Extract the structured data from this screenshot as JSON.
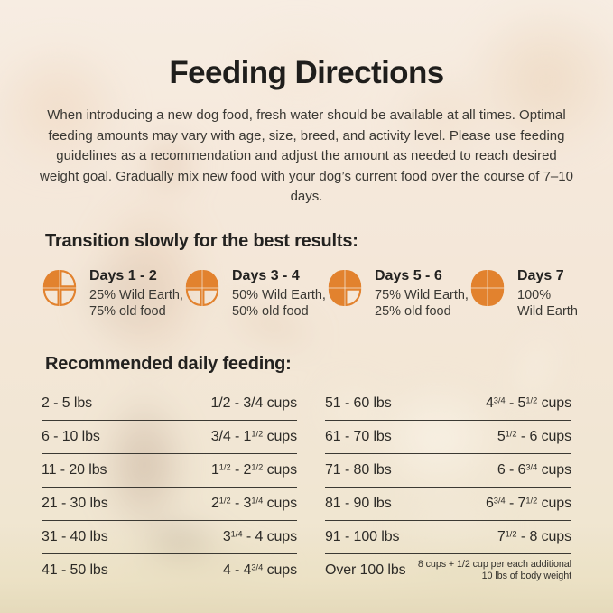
{
  "colors": {
    "accent_orange": "#E2822E",
    "text_dark": "#232220",
    "rule": "#3b3933",
    "background_cream": "#f4e6d7"
  },
  "header": {
    "title": "Feeding Directions",
    "intro": "When introducing a new dog food, fresh water should be available at all times. Optimal feeding amounts may vary with age, size, breed, and activity level. Please use feeding guidelines as a recommendation and adjust the amount as needed to reach desired weight goal. Gradually mix new food with your dog’s current food over the course of 7–10 days."
  },
  "transition": {
    "heading": "Transition slowly for the best results:",
    "items": [
      {
        "day_label": "Days 1 - 2",
        "line1": "25% Wild Earth,",
        "line2": "75% old food",
        "wild_earth_pct": 25,
        "quadrants_filled": [
          1,
          0,
          0,
          0
        ],
        "icon": "pie-quarters-icon"
      },
      {
        "day_label": "Days 3 - 4",
        "line1": "50% Wild Earth,",
        "line2": "50% old food",
        "wild_earth_pct": 50,
        "quadrants_filled": [
          1,
          1,
          0,
          0
        ],
        "icon": "pie-quarters-icon"
      },
      {
        "day_label": "Days 5 - 6",
        "line1": "75% Wild Earth,",
        "line2": "25% old food",
        "wild_earth_pct": 75,
        "quadrants_filled": [
          1,
          1,
          1,
          0
        ],
        "icon": "pie-quarters-icon"
      },
      {
        "day_label": "Days 7",
        "line1": "100%",
        "line2": "Wild Earth",
        "wild_earth_pct": 100,
        "quadrants_filled": [
          1,
          1,
          1,
          1
        ],
        "icon": "pie-quarters-icon"
      }
    ]
  },
  "feeding": {
    "heading": "Recommended daily feeding:",
    "columns": [
      {
        "rows": [
          {
            "weight": "2 - 5 lbs",
            "cups": "1/2 - 3/4 cups"
          },
          {
            "weight": "6 - 10 lbs",
            "cups": "3/4 - 1^{1/2} cups"
          },
          {
            "weight": "11 - 20 lbs",
            "cups": "1^{1/2} - 2^{1/2} cups"
          },
          {
            "weight": "21 - 30 lbs",
            "cups": "2^{1/2} - 3^{1/4} cups"
          },
          {
            "weight": "31 - 40 lbs",
            "cups": "3^{1/4} - 4 cups"
          },
          {
            "weight": "41 - 50 lbs",
            "cups": "4 - 4^{3/4} cups"
          }
        ]
      },
      {
        "rows": [
          {
            "weight": "51 - 60 lbs",
            "cups": "4^{3/4} - 5^{1/2} cups"
          },
          {
            "weight": "61 - 70 lbs",
            "cups": "5^{1/2} - 6 cups"
          },
          {
            "weight": "71 - 80 lbs",
            "cups": "6 - 6^{3/4} cups"
          },
          {
            "weight": "81 - 90 lbs",
            "cups": "6^{3/4} - 7^{1/2} cups"
          },
          {
            "weight": "91 - 100 lbs",
            "cups": "7^{1/2} - 8 cups"
          },
          {
            "weight": "Over 100 lbs",
            "cups": "8 cups + 1/2 cup per each additional 10 lbs of body weight",
            "small": true
          }
        ]
      }
    ]
  }
}
